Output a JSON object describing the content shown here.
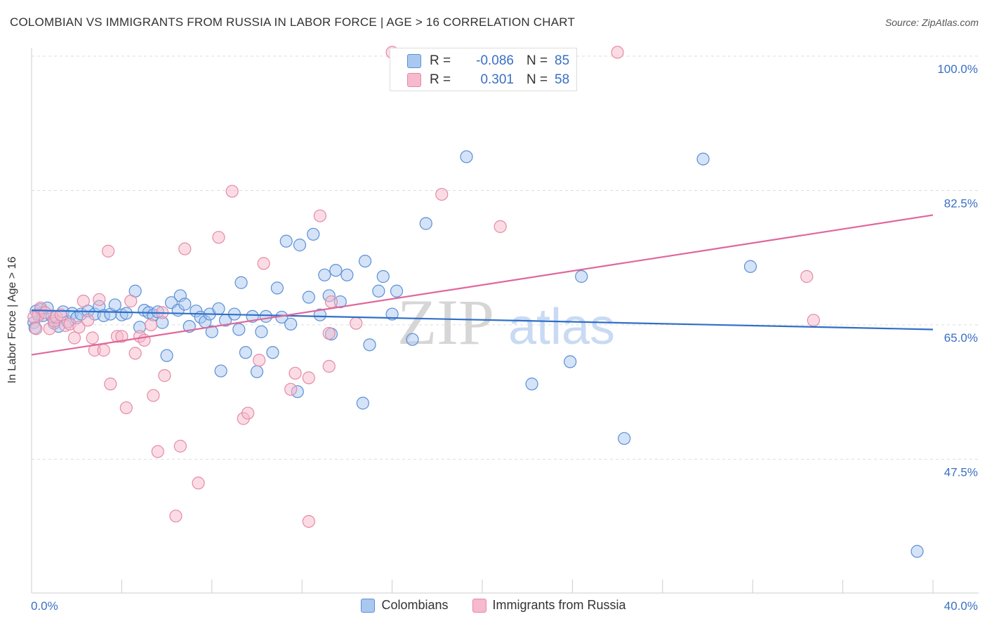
{
  "title": "COLOMBIAN VS IMMIGRANTS FROM RUSSIA IN LABOR FORCE | AGE > 16 CORRELATION CHART",
  "source": "Source: ZipAtlas.com",
  "watermark": {
    "zip": "ZIP",
    "atlas": "atlas"
  },
  "colors": {
    "blue_fill": "#a9c8f0",
    "blue_stroke": "#5b8fd6",
    "blue_line": "#2f6fc8",
    "pink_fill": "#f7b9cc",
    "pink_stroke": "#e58aa7",
    "pink_line": "#e0679a",
    "axis_label": "#3a6fc4",
    "grid": "#dddddd"
  },
  "legend": {
    "rows": [
      {
        "r_label": "R =",
        "r_value": "-0.086",
        "n_label": "N =",
        "n_value": "85",
        "color": "blue"
      },
      {
        "r_label": "R =",
        "r_value": "0.301",
        "n_label": "N =",
        "n_value": "58",
        "color": "pink"
      }
    ]
  },
  "chart_data": {
    "type": "scatter",
    "title": "COLOMBIAN VS IMMIGRANTS FROM RUSSIA IN LABOR FORCE | AGE > 16 CORRELATION CHART",
    "xlabel": "",
    "ylabel": "In Labor Force | Age > 16",
    "xlim": [
      0,
      40
    ],
    "ylim": [
      32,
      102
    ],
    "x_tick_labels": [
      "0.0%",
      "40.0%"
    ],
    "y_ticks": [
      47.5,
      65.0,
      82.5,
      100.0
    ],
    "y_tick_labels": [
      "47.5%",
      "65.0%",
      "82.5%",
      "100.0%"
    ],
    "grid": true,
    "legend_position": "top-center",
    "series": [
      {
        "name": "Colombians",
        "color": "blue",
        "trend": {
          "x": [
            0,
            40
          ],
          "y": [
            66.9,
            64.4
          ]
        },
        "points": [
          [
            0.1,
            65.3
          ],
          [
            0.2,
            66.8
          ],
          [
            0.3,
            66.4
          ],
          [
            0.4,
            67.0
          ],
          [
            0.5,
            66.2
          ],
          [
            0.7,
            67.2
          ],
          [
            0.9,
            66.1
          ],
          [
            1.0,
            65.2
          ],
          [
            1.2,
            64.8
          ],
          [
            1.4,
            66.7
          ],
          [
            1.6,
            65.4
          ],
          [
            1.8,
            66.5
          ],
          [
            2.0,
            65.9
          ],
          [
            2.2,
            66.4
          ],
          [
            2.5,
            66.8
          ],
          [
            2.8,
            66.4
          ],
          [
            3.0,
            67.4
          ],
          [
            3.2,
            66.2
          ],
          [
            3.5,
            66.4
          ],
          [
            3.7,
            67.6
          ],
          [
            4.0,
            66.3
          ],
          [
            4.2,
            66.5
          ],
          [
            4.6,
            69.4
          ],
          [
            4.8,
            64.7
          ],
          [
            5.0,
            66.9
          ],
          [
            5.2,
            66.6
          ],
          [
            5.4,
            66.3
          ],
          [
            5.6,
            66.7
          ],
          [
            5.8,
            65.3
          ],
          [
            6.0,
            61.0
          ],
          [
            6.2,
            67.9
          ],
          [
            6.5,
            66.9
          ],
          [
            6.6,
            68.8
          ],
          [
            6.8,
            67.7
          ],
          [
            7.0,
            64.8
          ],
          [
            7.3,
            66.8
          ],
          [
            7.5,
            66.0
          ],
          [
            7.7,
            65.4
          ],
          [
            7.9,
            66.4
          ],
          [
            8.0,
            64.1
          ],
          [
            8.3,
            67.1
          ],
          [
            8.4,
            59.0
          ],
          [
            8.6,
            65.6
          ],
          [
            9.0,
            66.4
          ],
          [
            9.2,
            64.4
          ],
          [
            9.3,
            70.5
          ],
          [
            9.5,
            61.4
          ],
          [
            9.8,
            66.1
          ],
          [
            10.0,
            58.9
          ],
          [
            10.2,
            64.1
          ],
          [
            10.4,
            66.1
          ],
          [
            10.7,
            61.4
          ],
          [
            10.9,
            69.8
          ],
          [
            11.1,
            66.0
          ],
          [
            11.3,
            75.9
          ],
          [
            11.5,
            65.1
          ],
          [
            11.8,
            56.3
          ],
          [
            11.9,
            75.4
          ],
          [
            12.3,
            68.6
          ],
          [
            12.5,
            76.8
          ],
          [
            12.8,
            66.3
          ],
          [
            13.0,
            71.5
          ],
          [
            13.2,
            68.8
          ],
          [
            13.3,
            63.8
          ],
          [
            13.5,
            72.1
          ],
          [
            13.7,
            68.0
          ],
          [
            14.0,
            71.5
          ],
          [
            14.7,
            54.8
          ],
          [
            14.8,
            73.3
          ],
          [
            15.0,
            62.4
          ],
          [
            15.4,
            69.4
          ],
          [
            15.6,
            71.3
          ],
          [
            16.0,
            66.4
          ],
          [
            16.2,
            69.4
          ],
          [
            16.9,
            63.1
          ],
          [
            17.5,
            78.2
          ],
          [
            19.3,
            86.9
          ],
          [
            22.2,
            57.3
          ],
          [
            23.9,
            60.2
          ],
          [
            24.4,
            71.3
          ],
          [
            26.3,
            50.2
          ],
          [
            29.8,
            86.6
          ],
          [
            31.9,
            72.6
          ],
          [
            39.3,
            35.5
          ],
          [
            0.15,
            64.6
          ]
        ]
      },
      {
        "name": "Immigrants from Russia",
        "color": "pink",
        "trend": {
          "x": [
            0,
            40
          ],
          "y": [
            61.1,
            79.3
          ]
        },
        "points": [
          [
            0.2,
            64.5
          ],
          [
            0.3,
            66.2
          ],
          [
            0.4,
            67.2
          ],
          [
            0.6,
            66.6
          ],
          [
            0.8,
            64.5
          ],
          [
            1.0,
            65.5
          ],
          [
            1.1,
            66.0
          ],
          [
            1.3,
            66.3
          ],
          [
            1.5,
            64.9
          ],
          [
            1.7,
            65.1
          ],
          [
            1.9,
            63.3
          ],
          [
            2.1,
            64.7
          ],
          [
            2.3,
            68.1
          ],
          [
            2.5,
            65.6
          ],
          [
            2.7,
            63.3
          ],
          [
            2.8,
            61.7
          ],
          [
            3.0,
            68.3
          ],
          [
            3.2,
            61.7
          ],
          [
            3.4,
            74.6
          ],
          [
            3.5,
            57.3
          ],
          [
            3.8,
            63.5
          ],
          [
            4.0,
            63.5
          ],
          [
            4.2,
            54.2
          ],
          [
            4.4,
            68.1
          ],
          [
            4.6,
            61.3
          ],
          [
            4.8,
            63.5
          ],
          [
            5.0,
            63.0
          ],
          [
            5.3,
            65.0
          ],
          [
            5.4,
            55.8
          ],
          [
            5.6,
            48.5
          ],
          [
            5.8,
            66.6
          ],
          [
            5.9,
            58.4
          ],
          [
            6.4,
            40.1
          ],
          [
            6.6,
            49.2
          ],
          [
            6.8,
            74.9
          ],
          [
            7.4,
            44.4
          ],
          [
            8.3,
            76.4
          ],
          [
            8.9,
            82.4
          ],
          [
            9.4,
            52.8
          ],
          [
            9.6,
            53.5
          ],
          [
            10.1,
            60.4
          ],
          [
            10.3,
            73.0
          ],
          [
            11.5,
            56.6
          ],
          [
            11.7,
            58.7
          ],
          [
            12.3,
            39.4
          ],
          [
            12.3,
            58.1
          ],
          [
            12.8,
            79.2
          ],
          [
            13.2,
            59.6
          ],
          [
            13.2,
            63.9
          ],
          [
            13.3,
            68.0
          ],
          [
            14.4,
            65.2
          ],
          [
            16.0,
            100.5
          ],
          [
            18.2,
            82.0
          ],
          [
            20.8,
            77.8
          ],
          [
            26.0,
            100.5
          ],
          [
            34.4,
            71.3
          ],
          [
            34.7,
            65.6
          ],
          [
            0.1,
            66.0
          ]
        ]
      }
    ]
  }
}
